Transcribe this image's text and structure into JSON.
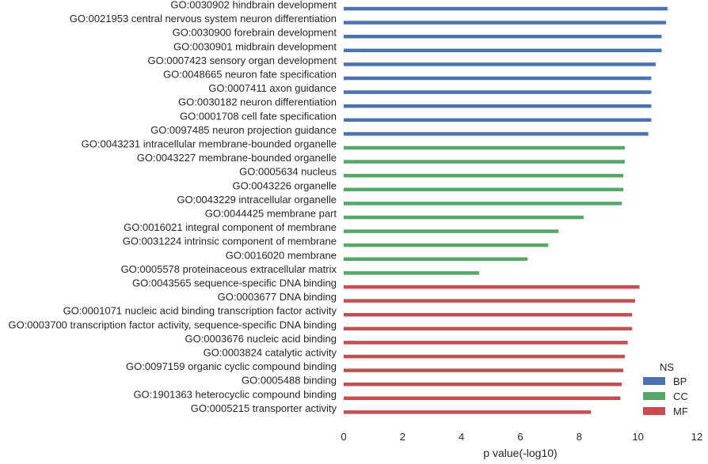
{
  "chart_data": {
    "type": "bar",
    "orientation": "horizontal",
    "xlabel": "p value(-log10)",
    "ylabel": "",
    "xlim": [
      0,
      12
    ],
    "xticks": [
      "0",
      "2",
      "4",
      "6",
      "8",
      "10",
      "12"
    ],
    "grid": false,
    "legend": {
      "title": "NS",
      "placement": "bottom-right",
      "entries": [
        {
          "name": "BP",
          "color": "#4c72b0"
        },
        {
          "name": "CC",
          "color": "#55a868"
        },
        {
          "name": "MF",
          "color": "#c44e52"
        }
      ]
    },
    "bars": [
      {
        "label": "GO:0030902 hindbrain development",
        "value": 11.0,
        "group": "BP"
      },
      {
        "label": "GO:0021953 central nervous system neuron differentiation",
        "value": 10.95,
        "group": "BP"
      },
      {
        "label": "GO:0030900 forebrain development",
        "value": 10.8,
        "group": "BP"
      },
      {
        "label": "GO:0030901 midbrain development",
        "value": 10.8,
        "group": "BP"
      },
      {
        "label": "GO:0007423 sensory organ development",
        "value": 10.6,
        "group": "BP"
      },
      {
        "label": "GO:0048665 neuron fate specification",
        "value": 10.45,
        "group": "BP"
      },
      {
        "label": "GO:0007411 axon guidance",
        "value": 10.45,
        "group": "BP"
      },
      {
        "label": "GO:0030182 neuron differentiation",
        "value": 10.45,
        "group": "BP"
      },
      {
        "label": "GO:0001708 cell fate specification",
        "value": 10.45,
        "group": "BP"
      },
      {
        "label": "GO:0097485 neuron projection guidance",
        "value": 10.35,
        "group": "BP"
      },
      {
        "label": "GO:0043231 intracellular membrane-bounded organelle",
        "value": 9.55,
        "group": "CC"
      },
      {
        "label": "GO:0043227 membrane-bounded organelle",
        "value": 9.55,
        "group": "CC"
      },
      {
        "label": "GO:0005634 nucleus",
        "value": 9.5,
        "group": "CC"
      },
      {
        "label": "GO:0043226 organelle",
        "value": 9.5,
        "group": "CC"
      },
      {
        "label": "GO:0043229 intracellular organelle",
        "value": 9.45,
        "group": "CC"
      },
      {
        "label": "GO:0044425 membrane part",
        "value": 8.15,
        "group": "CC"
      },
      {
        "label": "GO:0016021 integral component of membrane",
        "value": 7.3,
        "group": "CC"
      },
      {
        "label": "GO:0031224 intrinsic component of membrane",
        "value": 6.95,
        "group": "CC"
      },
      {
        "label": "GO:0016020 membrane",
        "value": 6.25,
        "group": "CC"
      },
      {
        "label": "GO:0005578 proteinaceous extracellular matrix",
        "value": 4.6,
        "group": "CC"
      },
      {
        "label": "GO:0043565 sequence-specific DNA binding",
        "value": 10.05,
        "group": "MF"
      },
      {
        "label": "GO:0003677 DNA binding",
        "value": 9.9,
        "group": "MF"
      },
      {
        "label": "GO:0001071 nucleic acid binding transcription factor activity",
        "value": 9.8,
        "group": "MF"
      },
      {
        "label": "GO:0003700 transcription factor activity, sequence-specific DNA binding",
        "value": 9.8,
        "group": "MF"
      },
      {
        "label": "GO:0003676 nucleic acid binding",
        "value": 9.65,
        "group": "MF"
      },
      {
        "label": "GO:0003824 catalytic activity",
        "value": 9.55,
        "group": "MF"
      },
      {
        "label": "GO:0097159 organic cyclic compound binding",
        "value": 9.5,
        "group": "MF"
      },
      {
        "label": "GO:0005488 binding",
        "value": 9.45,
        "group": "MF"
      },
      {
        "label": "GO:1901363 heterocyclic compound binding",
        "value": 9.4,
        "group": "MF"
      },
      {
        "label": "GO:0005215 transporter activity",
        "value": 8.4,
        "group": "MF"
      }
    ]
  }
}
